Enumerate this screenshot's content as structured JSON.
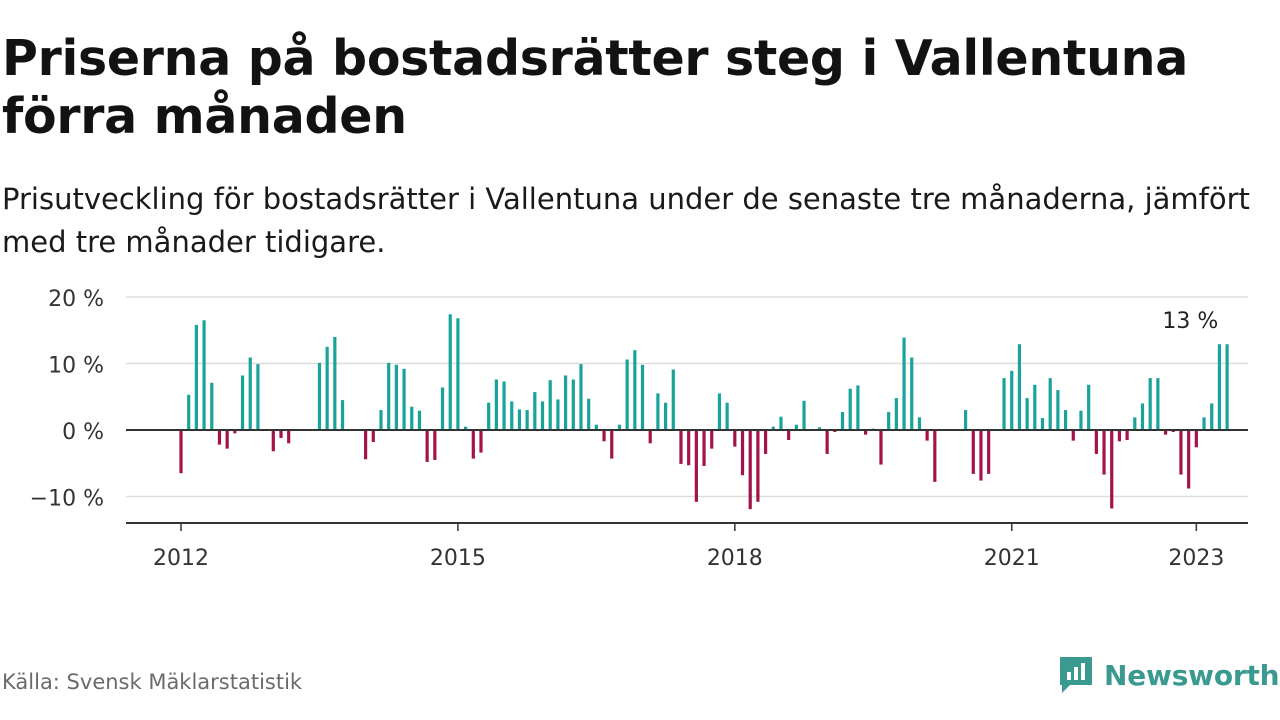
{
  "title": "Priserna på bostadsrätter steg i Vallentuna förra månaden",
  "subtitle": "Prisutveckling för bostadsrätter i Vallentuna under de senaste tre månaderna, jämfört med tre månader tidigare.",
  "source": "Källa: Svensk Mäklarstatistik",
  "brand": "Newsworthy",
  "colors": {
    "positive": "#1aa39b",
    "negative": "#a3124a",
    "grid": "#dddddd",
    "axis": "#333333",
    "brand": "#3a9a8f"
  },
  "chart_data": {
    "type": "bar",
    "x_start": "2012-01",
    "frequency": "monthly",
    "ylim": [
      -14,
      20
    ],
    "yticks": [
      {
        "value": 20,
        "label": "20 %"
      },
      {
        "value": 10,
        "label": "10 %"
      },
      {
        "value": 0,
        "label": "0 %"
      },
      {
        "value": -10,
        "label": "−10 %"
      }
    ],
    "xticks": [
      {
        "value": "2012-01",
        "label": "2012"
      },
      {
        "value": "2015-01",
        "label": "2015"
      },
      {
        "value": "2018-01",
        "label": "2018"
      },
      {
        "value": "2021-01",
        "label": "2021"
      },
      {
        "value": "2023-01",
        "label": "2023"
      }
    ],
    "values": [
      -6.5,
      5.3,
      15.8,
      16.5,
      7.1,
      -2.2,
      -2.8,
      -0.5,
      8.2,
      10.9,
      9.9,
      0,
      -3.2,
      -1.2,
      -2.0,
      0,
      0,
      0,
      10.1,
      12.5,
      14.0,
      4.5,
      0,
      0,
      -4.4,
      -1.8,
      3.0,
      10.1,
      9.8,
      9.2,
      3.5,
      2.9,
      -4.8,
      -4.5,
      6.4,
      17.4,
      16.8,
      0.5,
      -4.3,
      -3.4,
      4.1,
      7.6,
      7.3,
      4.3,
      3.1,
      3.0,
      5.7,
      4.3,
      7.5,
      4.6,
      8.2,
      7.6,
      9.9,
      4.7,
      0.8,
      -1.7,
      -4.3,
      0.8,
      10.6,
      12.0,
      9.8,
      -2.0,
      5.5,
      4.1,
      9.1,
      -5.1,
      -5.3,
      -10.8,
      -5.4,
      -2.8,
      5.5,
      4.1,
      -2.5,
      -6.8,
      -11.9,
      -10.8,
      -3.6,
      0.5,
      2.0,
      -1.5,
      0.8,
      4.4,
      0,
      0.4,
      -3.6,
      -0.3,
      2.7,
      6.2,
      6.7,
      -0.7,
      0.2,
      -5.2,
      2.7,
      4.8,
      13.9,
      10.9,
      1.9,
      -1.6,
      -7.8,
      0,
      0,
      0,
      3.0,
      -6.6,
      -7.6,
      -6.6,
      0,
      7.8,
      8.9,
      12.9,
      4.8,
      6.8,
      1.8,
      7.8,
      6.0,
      3.0,
      -1.6,
      2.9,
      6.8,
      -3.6,
      -6.7,
      -11.8,
      -1.7,
      -1.5,
      1.9,
      4.0,
      7.8,
      7.8,
      -0.7,
      -0.3,
      -6.7,
      -8.8,
      -2.6,
      1.9,
      4.0,
      12.9,
      12.9
    ],
    "annotation": {
      "x": "2023-01",
      "label": "13 %"
    }
  }
}
